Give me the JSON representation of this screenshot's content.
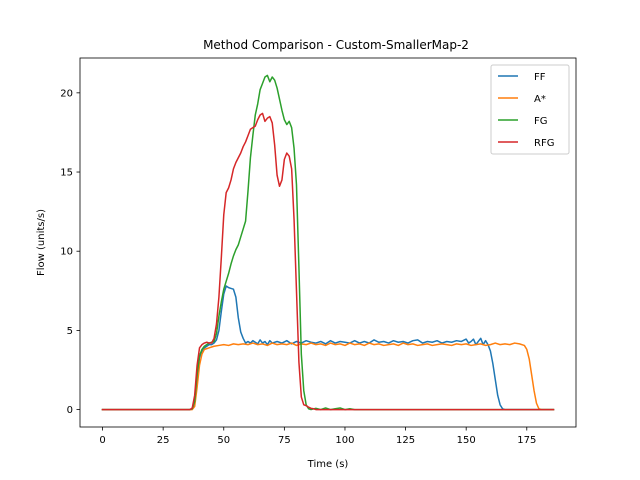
{
  "chart_data": {
    "type": "line",
    "title": "Method Comparison - Custom-SmallerMap-2",
    "xlabel": "Time (s)",
    "ylabel": "Flow (units/s)",
    "xlim": [
      -9.3,
      195.3
    ],
    "ylim": [
      -1.1,
      22.2
    ],
    "xticks": [
      0,
      25,
      50,
      75,
      100,
      125,
      150,
      175
    ],
    "yticks": [
      0,
      5,
      10,
      15,
      20
    ],
    "grid": false,
    "legend": "top-right",
    "series": [
      {
        "name": "FF",
        "color": "#1f77b4",
        "points": [
          [
            0,
            0
          ],
          [
            36,
            0
          ],
          [
            37,
            0.05
          ],
          [
            38,
            0.4
          ],
          [
            39,
            2.0
          ],
          [
            40,
            3.3
          ],
          [
            41,
            3.7
          ],
          [
            42,
            3.9
          ],
          [
            43,
            4.0
          ],
          [
            44,
            4.1
          ],
          [
            45,
            4.1
          ],
          [
            46,
            4.2
          ],
          [
            47,
            4.4
          ],
          [
            48,
            5.0
          ],
          [
            49,
            6.2
          ],
          [
            50,
            7.3
          ],
          [
            51,
            7.8
          ],
          [
            52,
            7.7
          ],
          [
            53,
            7.65
          ],
          [
            54,
            7.6
          ],
          [
            55,
            7.1
          ],
          [
            56,
            5.8
          ],
          [
            57,
            4.9
          ],
          [
            58,
            4.5
          ],
          [
            59,
            4.2
          ],
          [
            60,
            4.3
          ],
          [
            61,
            4.2
          ],
          [
            62,
            4.35
          ],
          [
            63,
            4.25
          ],
          [
            64,
            4.15
          ],
          [
            65,
            4.4
          ],
          [
            66,
            4.2
          ],
          [
            67,
            4.3
          ],
          [
            68,
            4.1
          ],
          [
            69,
            4.35
          ],
          [
            70,
            4.2
          ],
          [
            72,
            4.3
          ],
          [
            74,
            4.2
          ],
          [
            76,
            4.35
          ],
          [
            78,
            4.15
          ],
          [
            80,
            4.3
          ],
          [
            82,
            4.2
          ],
          [
            84,
            4.35
          ],
          [
            86,
            4.25
          ],
          [
            88,
            4.2
          ],
          [
            90,
            4.3
          ],
          [
            92,
            4.15
          ],
          [
            94,
            4.35
          ],
          [
            96,
            4.2
          ],
          [
            98,
            4.3
          ],
          [
            100,
            4.25
          ],
          [
            102,
            4.2
          ],
          [
            104,
            4.35
          ],
          [
            106,
            4.2
          ],
          [
            108,
            4.3
          ],
          [
            110,
            4.2
          ],
          [
            112,
            4.4
          ],
          [
            114,
            4.25
          ],
          [
            116,
            4.3
          ],
          [
            118,
            4.2
          ],
          [
            120,
            4.35
          ],
          [
            122,
            4.25
          ],
          [
            124,
            4.3
          ],
          [
            126,
            4.2
          ],
          [
            128,
            4.35
          ],
          [
            130,
            4.4
          ],
          [
            132,
            4.2
          ],
          [
            134,
            4.3
          ],
          [
            136,
            4.25
          ],
          [
            138,
            4.35
          ],
          [
            140,
            4.2
          ],
          [
            142,
            4.3
          ],
          [
            144,
            4.25
          ],
          [
            146,
            4.35
          ],
          [
            148,
            4.3
          ],
          [
            150,
            4.45
          ],
          [
            151,
            4.2
          ],
          [
            152,
            4.3
          ],
          [
            153,
            4.45
          ],
          [
            154,
            4.1
          ],
          [
            155,
            4.3
          ],
          [
            156,
            4.5
          ],
          [
            157,
            4.1
          ],
          [
            158,
            4.35
          ],
          [
            159,
            4.1
          ],
          [
            160,
            3.7
          ],
          [
            161,
            2.9
          ],
          [
            162,
            1.9
          ],
          [
            163,
            0.9
          ],
          [
            164,
            0.3
          ],
          [
            165,
            0.05
          ],
          [
            166,
            0
          ],
          [
            186,
            0
          ]
        ]
      },
      {
        "name": "A*",
        "color": "#ff7f0e",
        "points": [
          [
            0,
            0
          ],
          [
            37,
            0
          ],
          [
            38,
            0.2
          ],
          [
            39,
            1.4
          ],
          [
            40,
            2.8
          ],
          [
            41,
            3.5
          ],
          [
            42,
            3.8
          ],
          [
            43,
            3.85
          ],
          [
            44,
            3.9
          ],
          [
            45,
            3.95
          ],
          [
            46,
            4.0
          ],
          [
            48,
            4.05
          ],
          [
            50,
            4.1
          ],
          [
            52,
            4.05
          ],
          [
            54,
            4.15
          ],
          [
            56,
            4.1
          ],
          [
            58,
            4.15
          ],
          [
            60,
            4.1
          ],
          [
            62,
            4.2
          ],
          [
            64,
            4.1
          ],
          [
            66,
            4.15
          ],
          [
            68,
            4.05
          ],
          [
            70,
            4.2
          ],
          [
            72,
            4.1
          ],
          [
            74,
            4.15
          ],
          [
            76,
            4.1
          ],
          [
            78,
            4.2
          ],
          [
            80,
            4.05
          ],
          [
            82,
            4.15
          ],
          [
            84,
            4.1
          ],
          [
            86,
            4.2
          ],
          [
            88,
            4.1
          ],
          [
            90,
            4.15
          ],
          [
            92,
            4.05
          ],
          [
            94,
            4.2
          ],
          [
            96,
            4.1
          ],
          [
            98,
            4.15
          ],
          [
            100,
            4.05
          ],
          [
            102,
            4.2
          ],
          [
            104,
            4.1
          ],
          [
            106,
            4.15
          ],
          [
            108,
            4.05
          ],
          [
            110,
            4.2
          ],
          [
            112,
            4.1
          ],
          [
            114,
            4.15
          ],
          [
            116,
            4.05
          ],
          [
            118,
            4.1
          ],
          [
            120,
            4.15
          ],
          [
            122,
            4.05
          ],
          [
            124,
            4.2
          ],
          [
            126,
            4.1
          ],
          [
            128,
            4.15
          ],
          [
            130,
            4.05
          ],
          [
            132,
            4.1
          ],
          [
            134,
            4.15
          ],
          [
            136,
            4.05
          ],
          [
            138,
            4.1
          ],
          [
            140,
            4.15
          ],
          [
            142,
            4.1
          ],
          [
            144,
            4.05
          ],
          [
            146,
            4.15
          ],
          [
            148,
            4.1
          ],
          [
            150,
            4.15
          ],
          [
            152,
            4.05
          ],
          [
            154,
            4.1
          ],
          [
            156,
            4.15
          ],
          [
            158,
            4.05
          ],
          [
            160,
            4.1
          ],
          [
            162,
            4.2
          ],
          [
            164,
            4.1
          ],
          [
            166,
            4.15
          ],
          [
            168,
            4.1
          ],
          [
            170,
            4.2
          ],
          [
            172,
            4.15
          ],
          [
            174,
            4.05
          ],
          [
            175,
            3.8
          ],
          [
            176,
            3.2
          ],
          [
            177,
            2.2
          ],
          [
            178,
            1.2
          ],
          [
            179,
            0.4
          ],
          [
            180,
            0.05
          ],
          [
            181,
            0
          ],
          [
            186,
            0
          ]
        ]
      },
      {
        "name": "FG",
        "color": "#2ca02c",
        "points": [
          [
            0,
            0
          ],
          [
            36,
            0
          ],
          [
            37,
            0.05
          ],
          [
            38,
            0.5
          ],
          [
            39,
            2.2
          ],
          [
            40,
            3.4
          ],
          [
            41,
            3.8
          ],
          [
            42,
            4.0
          ],
          [
            43,
            4.1
          ],
          [
            44,
            4.2
          ],
          [
            45,
            4.25
          ],
          [
            46,
            4.3
          ],
          [
            47,
            4.8
          ],
          [
            48,
            5.9
          ],
          [
            49,
            6.8
          ],
          [
            50,
            7.6
          ],
          [
            51,
            8.1
          ],
          [
            52,
            8.6
          ],
          [
            53,
            9.2
          ],
          [
            54,
            9.7
          ],
          [
            55,
            10.1
          ],
          [
            56,
            10.4
          ],
          [
            57,
            10.9
          ],
          [
            58,
            11.4
          ],
          [
            59,
            11.9
          ],
          [
            60,
            13.8
          ],
          [
            61,
            15.9
          ],
          [
            62,
            17.3
          ],
          [
            63,
            18.6
          ],
          [
            64,
            19.3
          ],
          [
            65,
            20.2
          ],
          [
            66,
            20.6
          ],
          [
            67,
            21.0
          ],
          [
            68,
            21.1
          ],
          [
            69,
            20.7
          ],
          [
            70,
            21.0
          ],
          [
            71,
            20.8
          ],
          [
            72,
            20.3
          ],
          [
            73,
            19.6
          ],
          [
            74,
            18.9
          ],
          [
            75,
            18.3
          ],
          [
            76,
            18.0
          ],
          [
            77,
            18.2
          ],
          [
            78,
            17.8
          ],
          [
            79,
            16.5
          ],
          [
            80,
            14.2
          ],
          [
            81,
            9.0
          ],
          [
            82,
            3.5
          ],
          [
            83,
            1.2
          ],
          [
            84,
            0.3
          ],
          [
            85,
            0.05
          ],
          [
            86,
            0
          ],
          [
            88,
            0.08
          ],
          [
            90,
            0
          ],
          [
            92,
            0.1
          ],
          [
            94,
            0
          ],
          [
            96,
            0.05
          ],
          [
            98,
            0.1
          ],
          [
            100,
            0
          ],
          [
            102,
            0.05
          ],
          [
            104,
            0
          ],
          [
            186,
            0
          ]
        ]
      },
      {
        "name": "RFG",
        "color": "#d62728",
        "points": [
          [
            0,
            0
          ],
          [
            36,
            0
          ],
          [
            37,
            0.1
          ],
          [
            38,
            0.9
          ],
          [
            39,
            2.8
          ],
          [
            40,
            3.9
          ],
          [
            41,
            4.1
          ],
          [
            42,
            4.2
          ],
          [
            43,
            4.25
          ],
          [
            44,
            4.2
          ],
          [
            45,
            4.2
          ],
          [
            46,
            4.5
          ],
          [
            47,
            5.4
          ],
          [
            48,
            7.1
          ],
          [
            49,
            9.6
          ],
          [
            50,
            12.3
          ],
          [
            51,
            13.7
          ],
          [
            52,
            14.0
          ],
          [
            53,
            14.5
          ],
          [
            54,
            15.2
          ],
          [
            55,
            15.6
          ],
          [
            56,
            15.9
          ],
          [
            57,
            16.2
          ],
          [
            58,
            16.6
          ],
          [
            59,
            16.9
          ],
          [
            60,
            17.3
          ],
          [
            61,
            17.7
          ],
          [
            62,
            17.8
          ],
          [
            63,
            17.9
          ],
          [
            64,
            18.3
          ],
          [
            65,
            18.6
          ],
          [
            66,
            18.7
          ],
          [
            67,
            18.2
          ],
          [
            68,
            18.4
          ],
          [
            69,
            18.5
          ],
          [
            70,
            18.1
          ],
          [
            71,
            16.7
          ],
          [
            72,
            14.8
          ],
          [
            73,
            14.1
          ],
          [
            74,
            14.5
          ],
          [
            75,
            15.8
          ],
          [
            76,
            16.2
          ],
          [
            77,
            16.0
          ],
          [
            78,
            15.2
          ],
          [
            79,
            12.0
          ],
          [
            80,
            7.5
          ],
          [
            81,
            3.0
          ],
          [
            82,
            0.8
          ],
          [
            83,
            0.3
          ],
          [
            84,
            0.25
          ],
          [
            85,
            0.15
          ],
          [
            86,
            0.08
          ],
          [
            87,
            0.05
          ],
          [
            88,
            0
          ],
          [
            186,
            0
          ]
        ]
      }
    ]
  }
}
